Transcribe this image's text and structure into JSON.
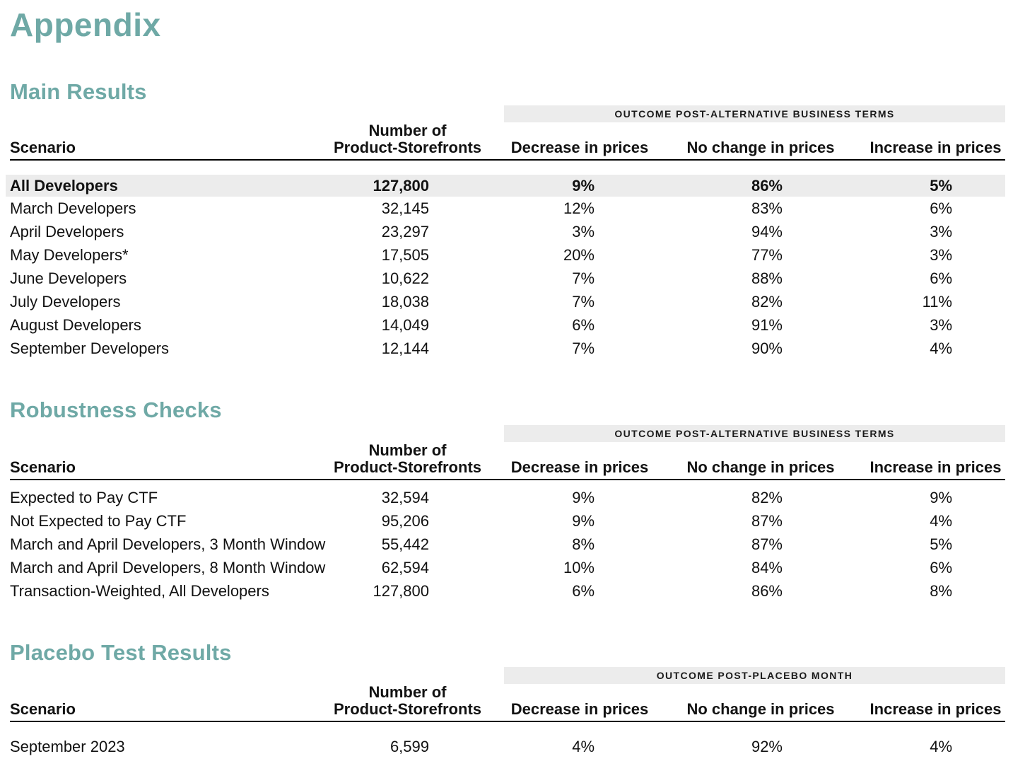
{
  "page": {
    "title": "Appendix"
  },
  "colors": {
    "accent_teal": "#6FA9A6",
    "band_background": "#ECECEC",
    "highlight_row_background": "#ECECEC",
    "text": "#121212",
    "header_rule": "#000000"
  },
  "sections": [
    {
      "title": "Main Results",
      "band": "OUTCOME POST-ALTERNATIVE BUSINESS TERMS",
      "headers": {
        "scenario": "Scenario",
        "count_line1": "Number of",
        "count_line2": "Product-Storefronts",
        "decrease": "Decrease in prices",
        "no_change": "No change in prices",
        "increase": "Increase in prices"
      },
      "rows": [
        {
          "scenario": "All Developers",
          "count": "127,800",
          "decrease": "9%",
          "no_change": "86%",
          "increase": "5%"
        },
        {
          "scenario": "March Developers",
          "count": "32,145",
          "decrease": "12%",
          "no_change": "83%",
          "increase": "6%"
        },
        {
          "scenario": "April Developers",
          "count": "23,297",
          "decrease": "3%",
          "no_change": "94%",
          "increase": "3%"
        },
        {
          "scenario": "May Developers*",
          "count": "17,505",
          "decrease": "20%",
          "no_change": "77%",
          "increase": "3%"
        },
        {
          "scenario": "June Developers",
          "count": "10,622",
          "decrease": "7%",
          "no_change": "88%",
          "increase": "6%"
        },
        {
          "scenario": "July Developers",
          "count": "18,038",
          "decrease": "7%",
          "no_change": "82%",
          "increase": "11%"
        },
        {
          "scenario": "August Developers",
          "count": "14,049",
          "decrease": "6%",
          "no_change": "91%",
          "increase": "3%"
        },
        {
          "scenario": "September Developers",
          "count": "12,144",
          "decrease": "7%",
          "no_change": "90%",
          "increase": "4%"
        }
      ]
    },
    {
      "title": "Robustness Checks",
      "band": "OUTCOME POST-ALTERNATIVE BUSINESS TERMS",
      "headers": {
        "scenario": "Scenario",
        "count_line1": "Number of",
        "count_line2": "Product-Storefronts",
        "decrease": "Decrease in prices",
        "no_change": "No change in prices",
        "increase": "Increase in prices"
      },
      "rows": [
        {
          "scenario": "Expected to Pay CTF",
          "count": "32,594",
          "decrease": "9%",
          "no_change": "82%",
          "increase": "9%"
        },
        {
          "scenario": "Not Expected to Pay CTF",
          "count": "95,206",
          "decrease": "9%",
          "no_change": "87%",
          "increase": "4%"
        },
        {
          "scenario": "March and April Developers, 3 Month Window",
          "count": "55,442",
          "decrease": "8%",
          "no_change": "87%",
          "increase": "5%"
        },
        {
          "scenario": "March and April Developers, 8 Month Window",
          "count": "62,594",
          "decrease": "10%",
          "no_change": "84%",
          "increase": "6%"
        },
        {
          "scenario": "Transaction-Weighted, All Developers",
          "count": "127,800",
          "decrease": "6%",
          "no_change": "86%",
          "increase": "8%"
        }
      ]
    },
    {
      "title": "Placebo Test Results",
      "band": "OUTCOME POST-PLACEBO MONTH",
      "headers": {
        "scenario": "Scenario",
        "count_line1": "Number of",
        "count_line2": "Product-Storefronts",
        "decrease": "Decrease in prices",
        "no_change": "No change in prices",
        "increase": "Increase in prices"
      },
      "rows": [
        {
          "scenario": "September 2023",
          "count": "6,599",
          "decrease": "4%",
          "no_change": "92%",
          "increase": "4%"
        }
      ]
    }
  ]
}
